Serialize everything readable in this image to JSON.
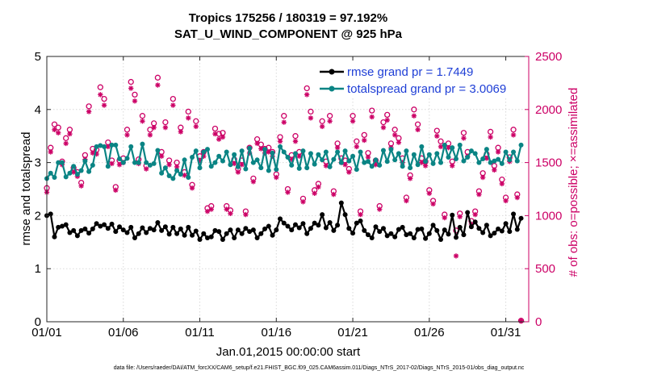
{
  "chart_data": {
    "type": "line",
    "title_line1": "Tropics 175256 / 180319 = 97.192%",
    "title_line2": "SAT_U_WIND_COMPONENT @ 925 hPa",
    "xlabel": "Jan.01,2015 00:00:00 start",
    "ylabel_left": "rmse and totalspread",
    "ylabel_right": "# of obs: o=possible; ×=assimilated",
    "footnote": "data file: /Users/raeder/DAI/ATM_forcXX/CAM6_setup/f.e21.FHIST_BGC.f09_025.CAM6assim.011/Diags_NTrS_2017-02/Diags_NTrS_2015-01/obs_diag_output.nc",
    "xlim": [
      1,
      32.5
    ],
    "ylim_left": [
      0,
      5
    ],
    "ylim_right": [
      0,
      2500
    ],
    "x_ticks": [
      1,
      6,
      11,
      16,
      21,
      26,
      31
    ],
    "x_tick_labels": [
      "01/01",
      "01/06",
      "01/11",
      "01/16",
      "01/21",
      "01/26",
      "01/31"
    ],
    "y_ticks_left": [
      "0",
      "1",
      "2",
      "3",
      "4",
      "5"
    ],
    "y_ticks_right": [
      "0",
      "500",
      "1000",
      "1500",
      "2000",
      "2500"
    ],
    "grid": true,
    "colors": {
      "rmse": "#000000",
      "spread": "#0a8484",
      "obs": "#cc0066",
      "legend_text": "#1f3fd6"
    },
    "series": [
      {
        "name": "rmse grand pr = 1.7449",
        "axis": "left",
        "values": [
          2.0,
          2.03,
          1.6,
          1.78,
          1.8,
          1.83,
          1.68,
          1.72,
          1.62,
          1.72,
          1.75,
          1.67,
          1.75,
          1.85,
          1.8,
          1.83,
          1.76,
          1.84,
          1.7,
          1.79,
          1.73,
          1.68,
          1.78,
          1.58,
          1.66,
          1.77,
          1.68,
          1.76,
          1.73,
          1.87,
          1.72,
          1.79,
          1.65,
          1.78,
          1.66,
          1.75,
          1.63,
          1.78,
          1.63,
          1.71,
          1.55,
          1.66,
          1.58,
          1.6,
          1.72,
          1.7,
          1.55,
          1.66,
          1.73,
          1.58,
          1.73,
          1.66,
          1.76,
          1.7,
          1.73,
          1.58,
          1.66,
          1.75,
          1.8,
          1.63,
          1.73,
          1.94,
          1.86,
          1.8,
          1.73,
          1.83,
          1.77,
          1.85,
          1.66,
          1.76,
          1.86,
          1.82,
          2.02,
          1.77,
          1.87,
          1.72,
          1.82,
          2.24,
          2.02,
          1.76,
          1.67,
          1.86,
          1.9,
          1.72,
          1.64,
          1.58,
          1.79,
          1.7,
          1.76,
          1.62,
          1.66,
          1.6,
          1.74,
          1.78,
          1.64,
          1.66,
          1.58,
          1.74,
          1.75,
          1.57,
          1.66,
          1.82,
          1.72,
          1.55,
          1.73,
          1.65,
          2.01,
          1.59,
          1.78,
          1.64,
          2.06,
          1.79,
          1.88,
          1.76,
          1.68,
          1.82,
          1.62,
          1.67,
          1.75,
          1.71,
          1.85,
          1.7,
          2.03,
          1.74,
          1.95
        ]
      },
      {
        "name": "totalspread grand pr = 3.0069",
        "axis": "left",
        "values": [
          2.7,
          2.8,
          2.72,
          3.0,
          3.0,
          2.73,
          2.8,
          2.93,
          2.78,
          2.85,
          3.03,
          2.83,
          2.95,
          3.3,
          3.32,
          3.3,
          2.93,
          3.33,
          3.33,
          3.07,
          3.0,
          3.08,
          3.3,
          3.0,
          3.0,
          3.35,
          3.0,
          2.95,
          2.98,
          3.23,
          2.8,
          2.9,
          2.75,
          2.7,
          2.85,
          2.78,
          3.05,
          2.72,
          3.1,
          3.22,
          2.9,
          3.2,
          3.25,
          2.93,
          3.0,
          3.12,
          3.03,
          3.2,
          2.96,
          3.15,
          2.92,
          3.22,
          2.88,
          3.27,
          3.0,
          3.05,
          2.9,
          3.25,
          2.85,
          3.18,
          2.87,
          3.3,
          3.2,
          3.1,
          2.95,
          3.17,
          2.89,
          3.22,
          2.9,
          3.17,
          2.97,
          3.15,
          3.05,
          3.2,
          2.92,
          3.06,
          3.2,
          3.0,
          3.22,
          3.03,
          3.12,
          2.87,
          3.2,
          3.0,
          3.02,
          2.93,
          3.05,
          2.95,
          3.23,
          3.02,
          3.25,
          3.05,
          3.17,
          2.93,
          3.22,
          2.9,
          3.15,
          2.96,
          3.3,
          3.02,
          3.15,
          2.98,
          3.17,
          3.0,
          3.33,
          3.1,
          3.28,
          3.07,
          3.33,
          3.03,
          3.1,
          3.22,
          3.17,
          3.0,
          3.07,
          3.25,
          3.0,
          3.03,
          3.06,
          2.98,
          3.2,
          3.05,
          3.2,
          3.03,
          3.33
        ]
      },
      {
        "name": "obs possible",
        "axis": "right",
        "marker": "o",
        "values": [
          1260,
          1640,
          1860,
          1830,
          1510,
          1730,
          1810,
          1450,
          1410,
          1310,
          1570,
          2030,
          1630,
          1620,
          2210,
          2100,
          1690,
          1520,
          1270,
          1520,
          1540,
          1810,
          2260,
          2140,
          1530,
          1940,
          1470,
          1810,
          1870,
          2300,
          1600,
          1880,
          1520,
          2100,
          1500,
          1830,
          1410,
          1980,
          1290,
          1890,
          1560,
          1600,
          1070,
          1090,
          1820,
          1770,
          1780,
          1090,
          1050,
          1530,
          1440,
          1520,
          1040,
          1640,
          1350,
          1720,
          1670,
          1630,
          1640,
          1600,
          1390,
          1740,
          1940,
          1250,
          1570,
          1750,
          1600,
          1160,
          2200,
          1980,
          1240,
          1300,
          1890,
          1510,
          1940,
          1230,
          1680,
          1540,
          1520,
          1440,
          1940,
          1700,
          1040,
          1760,
          1590,
          1990,
          1520,
          1090,
          1880,
          1950,
          1680,
          1810,
          1730,
          1540,
          1170,
          1380,
          2000,
          1860,
          1540,
          1510,
          1240,
          1140,
          1800,
          1700,
          1010,
          1680,
          1510,
          860,
          1020,
          1780,
          1600,
          950,
          1040,
          1230,
          1400,
          1580,
          1790,
          1470,
          1640,
          1340,
          1170,
          1550,
          1810,
          1200,
          10
        ]
      },
      {
        "name": "obs assimilated",
        "axis": "right",
        "marker": "x",
        "values": [
          1220,
          1600,
          1810,
          1780,
          1480,
          1680,
          1770,
          1410,
          1370,
          1280,
          1530,
          1980,
          1590,
          1580,
          2140,
          2040,
          1650,
          1490,
          1240,
          1480,
          1500,
          1760,
          2200,
          2080,
          1490,
          1890,
          1440,
          1760,
          1830,
          2230,
          1560,
          1830,
          1480,
          2040,
          1460,
          1790,
          1380,
          1920,
          1260,
          1840,
          1520,
          1560,
          1040,
          1060,
          1770,
          1720,
          1740,
          1060,
          1020,
          1490,
          1410,
          1480,
          1010,
          1590,
          1320,
          1680,
          1630,
          1590,
          1600,
          1560,
          1360,
          1700,
          1880,
          1220,
          1530,
          1700,
          1560,
          1130,
          2140,
          1920,
          1210,
          1270,
          1840,
          1470,
          1890,
          1200,
          1640,
          1500,
          1480,
          1410,
          1890,
          1650,
          1010,
          1710,
          1550,
          1930,
          1480,
          1060,
          1830,
          1900,
          1640,
          1760,
          1690,
          1500,
          1140,
          1350,
          1940,
          1810,
          1500,
          1470,
          1210,
          1110,
          1750,
          1650,
          980,
          1640,
          1470,
          620,
          990,
          1730,
          1560,
          920,
          1010,
          1200,
          1360,
          1540,
          1740,
          1430,
          1600,
          1300,
          1140,
          1510,
          1760,
          1170,
          10
        ]
      }
    ]
  }
}
